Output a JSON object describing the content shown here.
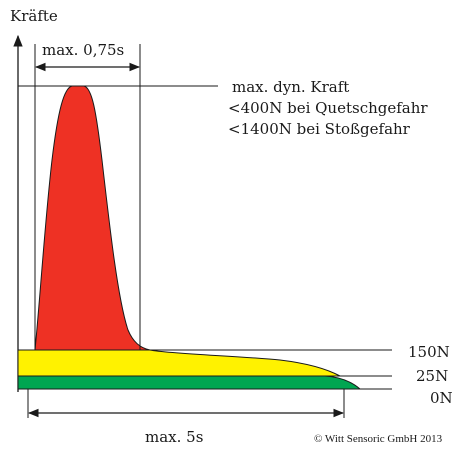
{
  "labels": {
    "y_axis": "Kräfte",
    "max_time_peak": "max. 0,75s",
    "max_dyn_force": "max. dyn. Kraft",
    "limit_pinch": "<400N bei Quetschgefahr",
    "limit_impact": "<1400N bei Stoßgefahr",
    "level_150": "150N",
    "level_25": "25N",
    "level_0": "0N",
    "max_time_total": "max. 5s",
    "copyright": "© Witt Sensoric GmbH 2013"
  },
  "colors": {
    "peak": "#ee3124",
    "yellow": "#fff200",
    "green": "#00a651",
    "line": "#1a1a1a"
  }
}
